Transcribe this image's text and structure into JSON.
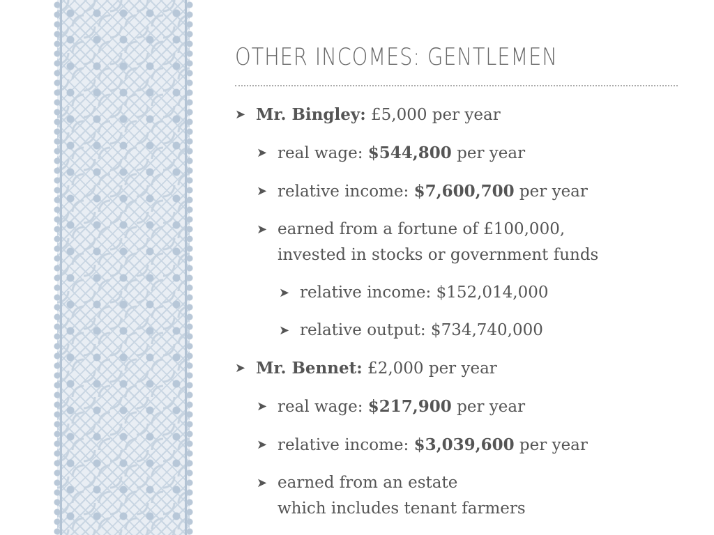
{
  "slide": {
    "title": "OTHER INCOMES: GENTLEMEN",
    "bullet_glyph": "➤",
    "items": [
      {
        "level": 0,
        "bold": "Mr. Bingley:",
        "rest": " £5,000 per year"
      },
      {
        "level": 1,
        "pre": "real wage: ",
        "bold": "$544,800",
        "rest": " per year"
      },
      {
        "level": 1,
        "pre": "relative income: ",
        "bold": "$7,600,700",
        "rest": " per year"
      },
      {
        "level": 1,
        "line1": "earned from a fortune of £100,000,",
        "line2": "invested in stocks or government funds"
      },
      {
        "level": 2,
        "text": "relative income: $152,014,000"
      },
      {
        "level": 2,
        "text": "relative output: $734,740,000"
      },
      {
        "level": 0,
        "bold": "Mr. Bennet:",
        "rest": " £2,000 per year"
      },
      {
        "level": 1,
        "pre": "real wage: ",
        "bold": "$217,900",
        "rest": " per year"
      },
      {
        "level": 1,
        "pre": "relative income: ",
        "bold": "$3,039,600",
        "rest": " per year"
      },
      {
        "level": 1,
        "line1": "earned from an estate",
        "line2": "which includes tenant farmers"
      }
    ]
  }
}
